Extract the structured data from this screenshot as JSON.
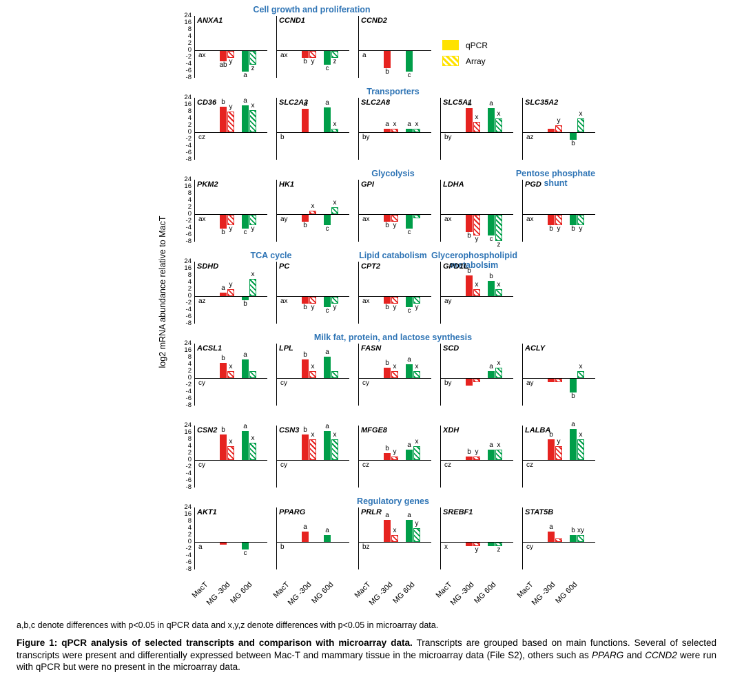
{
  "figure": {
    "ylabel": "log2 mRNA abundance relative to MacT",
    "note": "a,b,c denote differences with p<0.05 in qPCR data and x,y,z denote differences with p<0.05 in microarray data.",
    "caption": [
      {
        "text": "Figure 1: qPCR analysis of selected transcripts and comparison with microarray data.",
        "bold": true
      },
      {
        "text": " Transcripts are grouped based on main functions. Several of selected transcripts were present and differentially expressed between Mac-T and mammary tissue in the microarray data (File S2), others such as "
      },
      {
        "text": "PPARG",
        "italic": true
      },
      {
        "text": " and "
      },
      {
        "text": "CCND2",
        "italic": true
      },
      {
        "text": " were run with qPCR but were no present in the microarray data."
      }
    ]
  },
  "legend": {
    "color": "#ffe200",
    "items": [
      {
        "label": "qPCR",
        "style": "solid"
      },
      {
        "label": "Array",
        "style": "hatch"
      }
    ]
  },
  "colors": {
    "red_30d": "#e62320",
    "green_60d": "#009e49",
    "title_blue": "#2e74b5",
    "axis_black": "#000000"
  },
  "chart_data": {
    "type": "bar",
    "y_ticks": [
      24,
      16,
      8,
      4,
      2,
      0,
      -2,
      -4,
      -6,
      -8
    ],
    "x_categories": [
      "MacT",
      "MG -30d",
      "MG 60d"
    ],
    "series_legend": [
      "qPCR",
      "Array"
    ],
    "series_note": "q30/a30 = qPCR/Array at MG -30d (red); q60/a60 = qPCR/Array at MG 60d (green); values are log2 mRNA abundance relative to MacT",
    "rows": [
      {
        "titles": [
          {
            "text": "Cell growth and proliferation",
            "from": 0,
            "to": 2
          }
        ],
        "panels": [
          {
            "gene": "ANXA1",
            "mact": "ax",
            "values": {
              "q30": -3,
              "a30": -2,
              "q60": -6,
              "a60": -4
            },
            "letters": {
              "q30": "ab",
              "a30": "y",
              "q60": "a",
              "a60": "z"
            }
          },
          {
            "gene": "CCND1",
            "mact": "ax",
            "values": {
              "q30": -2,
              "a30": -2,
              "q60": -4,
              "a60": -2
            },
            "letters": {
              "q30": "b",
              "a30": "y",
              "q60": "c",
              "a60": "z"
            }
          },
          {
            "gene": "CCND2",
            "mact": "a",
            "values": {
              "q30": -5,
              "a30": null,
              "q60": -6,
              "a60": null
            },
            "letters": {
              "q30": "b",
              "q60": "c"
            }
          }
        ]
      },
      {
        "titles": [
          {
            "text": "Transporters",
            "from": 0,
            "to": 4
          }
        ],
        "panels": [
          {
            "gene": "CD36",
            "mact": "cz",
            "values": {
              "q30": 14,
              "a30": 8,
              "q60": 15,
              "a60": 10
            },
            "letters": {
              "q30": "b",
              "a30": "y",
              "q60": "a",
              "a60": "x"
            }
          },
          {
            "gene": "SLC2A3",
            "mact": "b",
            "values": {
              "q30": 11,
              "a30": null,
              "q60": 13,
              "a60": 1
            },
            "letters": {
              "q30": "a",
              "q60": "a",
              "a60": "x"
            }
          },
          {
            "gene": "SLC2A8",
            "mact": "by",
            "values": {
              "q30": 1,
              "a30": 1,
              "q60": 1,
              "a60": 1
            },
            "letters": {
              "q30": "a",
              "a30": "x",
              "q60": "a",
              "a60": "x"
            }
          },
          {
            "gene": "SLC5A1",
            "mact": "by",
            "values": {
              "q30": 12,
              "a30": 3,
              "q60": 12,
              "a60": 4
            },
            "letters": {
              "q30": "a",
              "a30": "x",
              "q60": "a",
              "a60": "x"
            }
          },
          {
            "gene": "SLC35A2",
            "mact": "az",
            "values": {
              "q30": 1,
              "a30": 2,
              "q60": -2,
              "a60": 4
            },
            "letters": {
              "a30": "y",
              "q60": "b",
              "a60": "x"
            }
          }
        ]
      },
      {
        "titles": [
          {
            "text": "Glycolysis",
            "from": 1,
            "to": 3
          },
          {
            "text": "Pentose phosphate shunt",
            "from": 4,
            "to": 4
          }
        ],
        "panels": [
          {
            "gene": "PKM2",
            "mact": "ax",
            "values": {
              "q30": -4,
              "a30": -3,
              "q60": -4,
              "a60": -3
            },
            "letters": {
              "q30": "b",
              "a30": "y",
              "q60": "c",
              "a60": "y"
            }
          },
          {
            "gene": "HK1",
            "mact": "ay",
            "values": {
              "q30": -2,
              "a30": 1,
              "q60": -3,
              "a60": 2
            },
            "letters": {
              "q30": "b",
              "a30": "x",
              "q60": "c",
              "a60": "x"
            }
          },
          {
            "gene": "GPI",
            "mact": "ax",
            "values": {
              "q30": -2,
              "a30": -2,
              "q60": -4,
              "a60": -1
            },
            "letters": {
              "q30": "b",
              "a30": "y",
              "q60": "c"
            }
          },
          {
            "gene": "LDHA",
            "mact": "ax",
            "values": {
              "q30": -5,
              "a30": -6,
              "q60": -6,
              "a60": -7.5
            },
            "letters": {
              "q30": "b",
              "a30": "y",
              "q60": "c",
              "a60": "z"
            }
          },
          {
            "gene": "PGD",
            "mact": "ax",
            "values": {
              "q30": -3,
              "a30": -3,
              "q60": -3,
              "a60": -3
            },
            "letters": {
              "q30": "b",
              "a30": "y",
              "q60": "b",
              "a60": "y"
            }
          }
        ]
      },
      {
        "titles": [
          {
            "text": "TCA cycle",
            "from": 0,
            "to": 1
          },
          {
            "text": "Lipid catabolism",
            "from": 2,
            "to": 2
          },
          {
            "text": "Glycerophospholipid metabolsim",
            "from": 3,
            "to": 3
          }
        ],
        "panels": [
          {
            "gene": "SDHD",
            "mact": "az",
            "values": {
              "q30": 1,
              "a30": 2,
              "q60": -1,
              "a60": 6
            },
            "letters": {
              "q30": "a",
              "a30": "y",
              "q60": "b",
              "a60": "x"
            }
          },
          {
            "gene": "PC",
            "mact": "ax",
            "values": {
              "q30": -2,
              "a30": -2,
              "q60": -3,
              "a60": -2
            },
            "letters": {
              "q30": "b",
              "a30": "y",
              "q60": "c",
              "a60": "y"
            }
          },
          {
            "gene": "CPT2",
            "mact": "ax",
            "values": {
              "q30": -2,
              "a30": -2,
              "q60": -3,
              "a60": -2
            },
            "letters": {
              "q30": "b",
              "a30": "y",
              "q60": "c",
              "a60": "y"
            }
          },
          {
            "gene": "GPD1L",
            "mact": "ay",
            "values": {
              "q30": 8,
              "a30": 2,
              "q60": 5,
              "a60": 2
            },
            "letters": {
              "q30": "b",
              "a30": "x",
              "q60": "b",
              "a60": "x"
            }
          }
        ]
      },
      {
        "titles": [
          {
            "text": "Milk fat, protein, and lactose synthesis",
            "from": 0,
            "to": 4
          }
        ],
        "panels": [
          {
            "gene": "ACSL1",
            "mact": "cy",
            "values": {
              "q30": 5,
              "a30": 2,
              "q60": 7,
              "a60": 2
            },
            "letters": {
              "q30": "b",
              "a30": "x",
              "q60": "a"
            }
          },
          {
            "gene": "LPL",
            "mact": "cy",
            "values": {
              "q30": 7,
              "a30": 2,
              "q60": 9,
              "a60": 2
            },
            "letters": {
              "q30": "b",
              "a30": "x",
              "q60": "a"
            }
          },
          {
            "gene": "FASN",
            "mact": "cy",
            "values": {
              "q30": 3,
              "a30": 2,
              "q60": 4,
              "a60": 2
            },
            "letters": {
              "q30": "b",
              "a30": "x",
              "q60": "a",
              "a60": "x"
            }
          },
          {
            "gene": "SCD",
            "mact": "by",
            "values": {
              "q30": -2,
              "a30": -1,
              "q60": 2,
              "a60": 3
            },
            "letters": {
              "q60": "a",
              "a60": "x"
            }
          },
          {
            "gene": "ACLY",
            "mact": "ay",
            "values": {
              "q30": -1,
              "a30": -1,
              "q60": -4,
              "a60": 2
            },
            "letters": {
              "q60": "b",
              "a60": "x"
            }
          }
        ]
      },
      {
        "titles": [],
        "panels": [
          {
            "gene": "CSN2",
            "mact": "cy",
            "values": {
              "q30": 14,
              "a30": 4,
              "q60": 18,
              "a60": 6
            },
            "letters": {
              "q30": "b",
              "a30": "x",
              "q60": "a",
              "a60": "x"
            }
          },
          {
            "gene": "CSN3",
            "mact": "cy",
            "values": {
              "q30": 14,
              "a30": 8,
              "q60": 18,
              "a60": 8
            },
            "letters": {
              "q30": "b",
              "a30": "x",
              "q60": "a",
              "a60": "x"
            }
          },
          {
            "gene": "MFGE8",
            "mact": "cz",
            "values": {
              "q30": 2,
              "a30": 1,
              "q60": 3,
              "a60": 4
            },
            "letters": {
              "q30": "b",
              "a30": "y",
              "q60": "a",
              "a60": "x"
            }
          },
          {
            "gene": "XDH",
            "mact": "cz",
            "values": {
              "q30": 1,
              "a30": 1,
              "q60": 3,
              "a60": 3
            },
            "letters": {
              "q30": "b",
              "a30": "y",
              "q60": "a",
              "a60": "x"
            }
          },
          {
            "gene": "LALBA",
            "mact": "cz",
            "values": {
              "q30": 8,
              "a30": 4,
              "q60": 20,
              "a60": 8
            },
            "letters": {
              "q30": "b",
              "a30": "y",
              "q60": "a",
              "a60": "x"
            }
          }
        ]
      },
      {
        "titles": [
          {
            "text": "Regulatory genes",
            "from": 0,
            "to": 4
          }
        ],
        "show_x_labels": true,
        "panels": [
          {
            "gene": "AKT1",
            "mact": "a",
            "values": {
              "q30": -0.5,
              "a30": null,
              "q60": -2,
              "a60": null
            },
            "letters": {
              "q60": "c"
            }
          },
          {
            "gene": "PPARG",
            "mact": "b",
            "values": {
              "q30": 3,
              "a30": null,
              "q60": 2,
              "a60": null
            },
            "letters": {
              "q30": "a",
              "q60": "a"
            }
          },
          {
            "gene": "PRLR",
            "mact": "bz",
            "values": {
              "q30": 10,
              "a30": 2,
              "q60": 10,
              "a60": 4
            },
            "letters": {
              "q30": "a",
              "a30": "x",
              "q60": "a",
              "a60": "y"
            }
          },
          {
            "gene": "SREBF1",
            "mact": "x",
            "values": {
              "q30": -1,
              "a30": -1,
              "q60": -1,
              "a60": -1
            },
            "letters": {
              "a30": "y",
              "a60": "z"
            }
          },
          {
            "gene": "STAT5B",
            "mact": "cy",
            "values": {
              "q30": 3,
              "a30": 1,
              "q60": 2,
              "a60": 2
            },
            "letters": {
              "q30": "a",
              "q60": "b",
              "a60": "xy"
            }
          }
        ]
      }
    ]
  }
}
